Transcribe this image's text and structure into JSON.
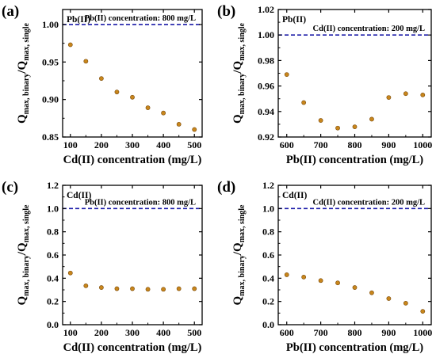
{
  "chart_data": [
    {
      "type": "scatter",
      "panel_label": "(a)",
      "metal_label": "Pb(II)",
      "annotation": "Pb(II) concentration: 800 mg/L",
      "xlabel": "Cd(II) concentration (mg/L)",
      "ylabel": {
        "main": "Q",
        "sub1": "max, binary",
        "slash": "/Q",
        "sub2": "max, single"
      },
      "xlim": [
        75,
        525
      ],
      "ylim": [
        0.85,
        1.02
      ],
      "xticks": [
        100,
        200,
        300,
        400,
        500
      ],
      "yticks": [
        0.85,
        0.9,
        0.95,
        1.0
      ],
      "ytick_labels": [
        "0.85",
        "0.90",
        "0.95",
        "1.00"
      ],
      "reference_line": 1.0,
      "x": [
        100,
        150,
        200,
        250,
        300,
        350,
        400,
        450,
        500
      ],
      "y": [
        0.973,
        0.951,
        0.928,
        0.91,
        0.903,
        0.889,
        0.882,
        0.867,
        0.86
      ]
    },
    {
      "type": "scatter",
      "panel_label": "(b)",
      "metal_label": "Pb(II)",
      "annotation": "Cd(II) concentration: 200 mg/L",
      "xlabel": "Pb(II) concentration (mg/L)",
      "ylabel": {
        "main": "Q",
        "sub1": "max, binary",
        "slash": "/Q",
        "sub2": "max, single"
      },
      "xlim": [
        575,
        1025
      ],
      "ylim": [
        0.92,
        1.02
      ],
      "xticks": [
        600,
        700,
        800,
        900,
        1000
      ],
      "yticks": [
        0.92,
        0.94,
        0.96,
        0.98,
        1.0,
        1.02
      ],
      "ytick_labels": [
        "0.92",
        "0.94",
        "0.96",
        "0.98",
        "1.00",
        "1.02"
      ],
      "reference_line": 1.0,
      "x": [
        600,
        650,
        700,
        750,
        800,
        850,
        900,
        950,
        1000
      ],
      "y": [
        0.969,
        0.947,
        0.933,
        0.927,
        0.928,
        0.934,
        0.951,
        0.954,
        0.953
      ]
    },
    {
      "type": "scatter",
      "panel_label": "(c)",
      "metal_label": "Cd(II)",
      "annotation": "Pb(II) concentration: 800 mg/L",
      "xlabel": "Cd(II) concentration (mg/L)",
      "ylabel": {
        "main": "Q",
        "sub1": "max, binary",
        "slash": "/Q",
        "sub2": "max, single"
      },
      "xlim": [
        75,
        525
      ],
      "ylim": [
        0.0,
        1.2
      ],
      "xticks": [
        100,
        200,
        300,
        400,
        500
      ],
      "yticks": [
        0.0,
        0.2,
        0.4,
        0.6,
        0.8,
        1.0,
        1.2
      ],
      "ytick_labels": [
        "0.0",
        "0.2",
        "0.4",
        "0.6",
        "0.8",
        "1.0",
        "1.2"
      ],
      "reference_line": 1.0,
      "x": [
        100,
        150,
        200,
        250,
        300,
        350,
        400,
        450,
        500
      ],
      "y": [
        0.445,
        0.335,
        0.32,
        0.31,
        0.31,
        0.305,
        0.305,
        0.31,
        0.31
      ]
    },
    {
      "type": "scatter",
      "panel_label": "(d)",
      "metal_label": "Cd(II)",
      "annotation": "Cd(II) concentration: 200 mg/L",
      "xlabel": "Pb(II) concentration (mg/L)",
      "ylabel": {
        "main": "Q",
        "sub1": "max, binary",
        "slash": "/Q",
        "sub2": "max, single"
      },
      "xlim": [
        575,
        1025
      ],
      "ylim": [
        0.0,
        1.2
      ],
      "xticks": [
        600,
        700,
        800,
        900,
        1000
      ],
      "yticks": [
        0.0,
        0.2,
        0.4,
        0.6,
        0.8,
        1.0,
        1.2
      ],
      "ytick_labels": [
        "0.0",
        "0.2",
        "0.4",
        "0.6",
        "0.8",
        "1.0",
        "1.2"
      ],
      "reference_line": 1.0,
      "x": [
        600,
        650,
        700,
        750,
        800,
        850,
        900,
        950,
        1000
      ],
      "y": [
        0.43,
        0.41,
        0.38,
        0.36,
        0.32,
        0.275,
        0.225,
        0.185,
        0.115
      ]
    }
  ],
  "colors": {
    "marker": "#c8861c",
    "marker_edge": "#7a4a0a",
    "reference_line": "#1a1aa8",
    "axis": "#000000"
  }
}
